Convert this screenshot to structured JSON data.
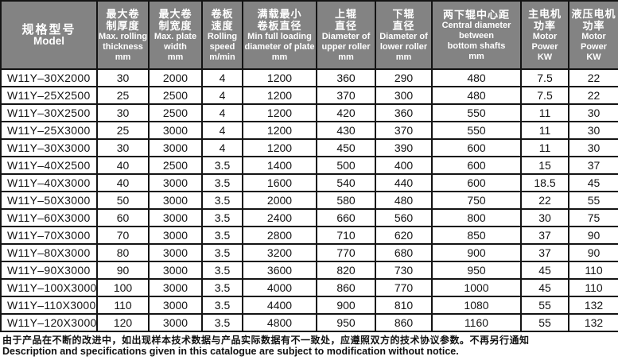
{
  "table": {
    "columns": [
      {
        "cn": [
          "规格型号"
        ],
        "en": [
          "Model"
        ],
        "unit": ""
      },
      {
        "cn": [
          "最大卷",
          "制厚度"
        ],
        "en": [
          "Max. rolling",
          "thickness"
        ],
        "unit": "mm"
      },
      {
        "cn": [
          "最大卷",
          "制宽度"
        ],
        "en": [
          "Max. plate",
          "width"
        ],
        "unit": "mm"
      },
      {
        "cn": [
          "卷板",
          "速度"
        ],
        "en": [
          "Rolling",
          "speed"
        ],
        "unit": "m/min"
      },
      {
        "cn": [
          "满载最小",
          "卷板直径"
        ],
        "en": [
          "Min full loading",
          "diameter of plate"
        ],
        "unit": "mm"
      },
      {
        "cn": [
          "上辊",
          "直径"
        ],
        "en": [
          "Diameter of",
          "upper roller"
        ],
        "unit": "mm"
      },
      {
        "cn": [
          "下辊",
          "直径"
        ],
        "en": [
          "Diameter of",
          "lower roller"
        ],
        "unit": "mm"
      },
      {
        "cn": [
          "两下辊中心距"
        ],
        "en": [
          "Central diameter",
          "between",
          "bottom shafts"
        ],
        "unit": "mm"
      },
      {
        "cn": [
          "主电机",
          "功率"
        ],
        "en": [
          "Motor",
          "Power"
        ],
        "unit": "KW"
      },
      {
        "cn": [
          "液压电机",
          "功率"
        ],
        "en": [
          "Motor",
          "Power"
        ],
        "unit": "KW"
      }
    ],
    "rows": [
      [
        "W11Y–30X2000",
        "30",
        "2000",
        "4",
        "1200",
        "360",
        "290",
        "480",
        "7.5",
        "22"
      ],
      [
        "W11Y–25X2500",
        "25",
        "2500",
        "4",
        "1200",
        "370",
        "300",
        "480",
        "7.5",
        "22"
      ],
      [
        "W11Y–30X2500",
        "30",
        "2500",
        "4",
        "1200",
        "420",
        "360",
        "550",
        "11",
        "30"
      ],
      [
        "W11Y–25X3000",
        "25",
        "3000",
        "4",
        "1200",
        "430",
        "370",
        "550",
        "11",
        "30"
      ],
      [
        "W11Y–30X3000",
        "30",
        "3000",
        "4",
        "1200",
        "450",
        "390",
        "600",
        "11",
        "30"
      ],
      [
        "W11Y–40X2500",
        "40",
        "2500",
        "3.5",
        "1400",
        "500",
        "400",
        "600",
        "15",
        "37"
      ],
      [
        "W11Y–40X3000",
        "40",
        "3000",
        "3.5",
        "1600",
        "540",
        "440",
        "600",
        "18.5",
        "45"
      ],
      [
        "W11Y–50X3000",
        "50",
        "3000",
        "3.5",
        "2000",
        "580",
        "480",
        "750",
        "22",
        "55"
      ],
      [
        "W11Y–60X3000",
        "60",
        "3000",
        "3.5",
        "2400",
        "660",
        "560",
        "800",
        "30",
        "75"
      ],
      [
        "W11Y–70X3000",
        "70",
        "3000",
        "3.5",
        "2800",
        "710",
        "620",
        "850",
        "37",
        "90"
      ],
      [
        "W11Y–80X3000",
        "80",
        "3000",
        "3.5",
        "3200",
        "770",
        "680",
        "900",
        "37",
        "90"
      ],
      [
        "W11Y–90X3000",
        "90",
        "3000",
        "3.5",
        "3600",
        "820",
        "730",
        "950",
        "45",
        "110"
      ],
      [
        "W11Y–100X3000",
        "100",
        "3000",
        "3.5",
        "4000",
        "860",
        "770",
        "1000",
        "45",
        "110"
      ],
      [
        "W11Y–110X3000",
        "110",
        "3000",
        "3.5",
        "4400",
        "900",
        "810",
        "1080",
        "55",
        "132"
      ],
      [
        "W11Y–120X3000",
        "120",
        "3000",
        "3.5",
        "4800",
        "950",
        "860",
        "1160",
        "55",
        "132"
      ]
    ]
  },
  "footer": {
    "line_cn": "由于产品在不断的改进中，如出现样本技术数据与产品实际数据有不一致处，应遵照双方的技术协议参数。不再另行通知",
    "line_en": "Description and specifications given in this catalogue are subject to modification without notice."
  },
  "colors": {
    "header_bg": "#838383",
    "header_text": "#ffffff",
    "border": "#141414",
    "body_text": "#141414"
  }
}
